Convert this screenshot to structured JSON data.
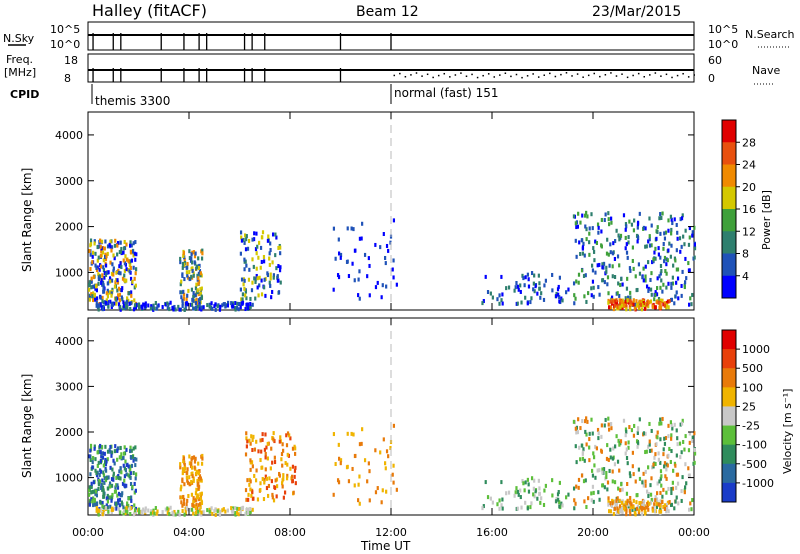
{
  "header": {
    "station": "Halley (fitACF)",
    "beam": "Beam 12",
    "date": "23/Mar/2015"
  },
  "strips": {
    "nsky": {
      "label": "N.Sky",
      "top_tick": "10^5",
      "bottom_tick": "10^0"
    },
    "nsearch": {
      "label": "N.Search",
      "top_tick": "10^5",
      "bottom_tick": "10^0"
    },
    "freq": {
      "label_line1": "Freq.",
      "label_line2": "[MHz]",
      "top_tick": "18",
      "bottom_tick": "8"
    },
    "nave": {
      "label": "Nave",
      "top_tick": "60",
      "bottom_tick": "0"
    },
    "cpid": {
      "label": "CPID"
    }
  },
  "chart_data": [
    {
      "type": "heatmap",
      "title": "",
      "ylabel": "Slant Range [km]",
      "xlabel": "Time UT",
      "x_ticks": [
        "00:00",
        "04:00",
        "08:00",
        "12:00",
        "16:00",
        "20:00",
        "00:00"
      ],
      "xlim_hours": [
        0,
        24
      ],
      "y_ticks": [
        1000,
        2000,
        3000,
        4000
      ],
      "ylim": [
        180,
        4500
      ],
      "colorbar_label": "Power [dB]",
      "colorbar_ticks": [
        "4",
        "8",
        "12",
        "16",
        "20",
        "24",
        "28"
      ],
      "colorbar_colors": [
        "#0000ff",
        "#1f52b8",
        "#2e7f6e",
        "#3fa03a",
        "#d4c800",
        "#f08a00",
        "#e8500e",
        "#e00000"
      ],
      "cpid_modes": [
        {
          "name": "themis 3300",
          "start_hour": 0
        },
        {
          "name": "normal (fast) 151",
          "start_hour": 12
        }
      ],
      "dashed_marker_hour": 12
    },
    {
      "type": "heatmap",
      "title": "",
      "ylabel": "Slant Range [km]",
      "xlabel": "Time UT",
      "x_ticks": [
        "00:00",
        "04:00",
        "08:00",
        "12:00",
        "16:00",
        "20:00",
        "00:00"
      ],
      "xlim_hours": [
        0,
        24
      ],
      "y_ticks": [
        1000,
        2000,
        3000,
        4000
      ],
      "ylim": [
        180,
        4500
      ],
      "colorbar_label": "Velocity [m s⁻¹]",
      "colorbar_ticks": [
        "1000",
        "500",
        "100",
        "25",
        "-25",
        "-100",
        "-500",
        "-1000"
      ],
      "colorbar_colors": [
        "#1a3cc8",
        "#2a6aa0",
        "#2f8c5c",
        "#5cbf3a",
        "#c8c8c8",
        "#f0b400",
        "#e87a0a",
        "#e8400a",
        "#e00000"
      ],
      "dashed_marker_hour": 12
    }
  ],
  "axis": {
    "time_label": "Time UT",
    "slant_label": "Slant Range [km]"
  }
}
